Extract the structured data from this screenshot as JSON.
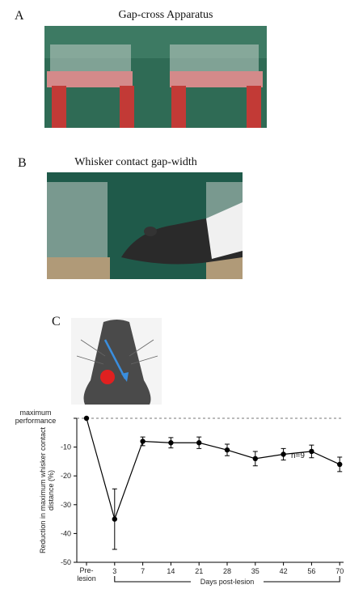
{
  "panels": [
    {
      "label": "A",
      "title": "Gap-cross Apparatus"
    },
    {
      "label": "B",
      "title": "Whisker contact gap-width"
    },
    {
      "label": "C"
    }
  ],
  "chart_data": {
    "type": "line",
    "ylabel": "Reduction in maximum whisker contact distance (%)",
    "xlabel": "Days post-lesion",
    "annotation": "n=9",
    "categories": [
      "Pre-lesion",
      "3",
      "7",
      "14",
      "21",
      "28",
      "35",
      "42",
      "56",
      "70"
    ],
    "series": [
      {
        "color": "#000000",
        "values": [
          0,
          -35,
          -8,
          -8.5,
          -8.5,
          -11,
          -14,
          -12.5,
          -11.5,
          -16
        ],
        "errors": [
          0,
          10.5,
          1.5,
          1.8,
          2,
          2,
          2.5,
          2,
          2.2,
          2.5
        ]
      }
    ],
    "ylim": [
      -50,
      0
    ],
    "yticks": [
      {
        "value": 0,
        "label": "maximum performance"
      },
      -10,
      -20,
      -30,
      -40,
      -50
    ],
    "reference_line": 0
  }
}
